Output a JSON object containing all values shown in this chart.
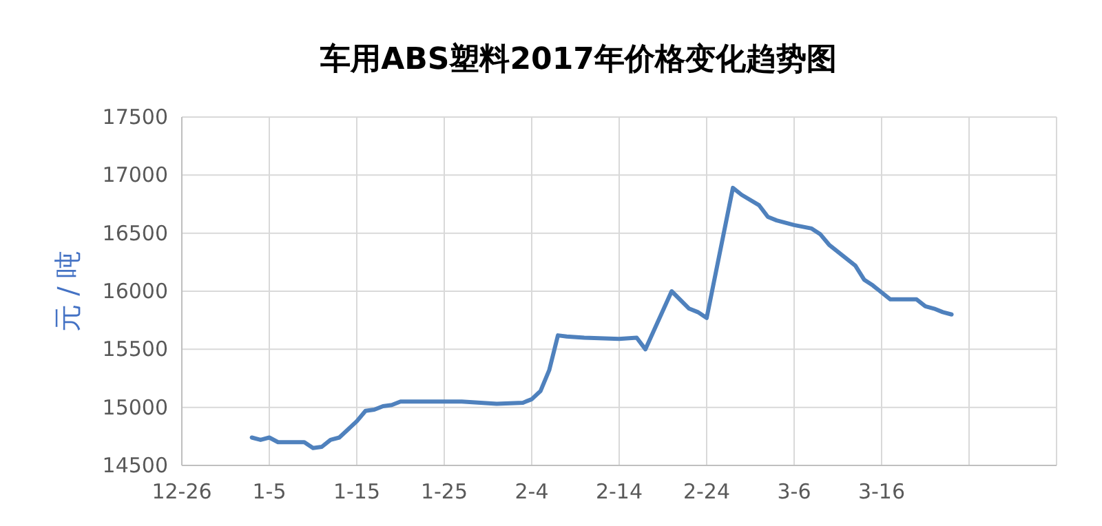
{
  "chart_data": {
    "type": "line",
    "title": "车用ABS塑料2017年价格变化趋势图",
    "ylabel": "元 / 吨",
    "x": [
      "2017-01-03",
      "2017-01-04",
      "2017-01-05",
      "2017-01-06",
      "2017-01-09",
      "2017-01-10",
      "2017-01-11",
      "2017-01-12",
      "2017-01-13",
      "2017-01-15",
      "2017-01-16",
      "2017-01-17",
      "2017-01-18",
      "2017-01-19",
      "2017-01-20",
      "2017-01-22",
      "2017-01-27",
      "2017-01-31",
      "2017-02-03",
      "2017-02-04",
      "2017-02-05",
      "2017-02-06",
      "2017-02-07",
      "2017-02-08",
      "2017-02-10",
      "2017-02-14",
      "2017-02-16",
      "2017-02-17",
      "2017-02-20",
      "2017-02-22",
      "2017-02-23",
      "2017-02-24",
      "2017-02-27",
      "2017-02-28",
      "2017-03-02",
      "2017-03-03",
      "2017-03-04",
      "2017-03-06",
      "2017-03-08",
      "2017-03-09",
      "2017-03-10",
      "2017-03-13",
      "2017-03-14",
      "2017-03-15",
      "2017-03-17",
      "2017-03-20",
      "2017-03-21",
      "2017-03-22",
      "2017-03-23",
      "2017-03-24"
    ],
    "series": [
      {
        "color": "#4f81bd",
        "values": [
          14740,
          14720,
          14740,
          14700,
          14700,
          14650,
          14660,
          14720,
          14740,
          14880,
          14970,
          14980,
          15010,
          15020,
          15050,
          15050,
          15050,
          15030,
          15040,
          15070,
          15140,
          15320,
          15620,
          15610,
          15600,
          15590,
          15600,
          15500,
          16000,
          15850,
          15820,
          15770,
          16890,
          16830,
          16740,
          16640,
          16610,
          16570,
          16540,
          16490,
          16400,
          16220,
          16100,
          16050,
          15930,
          15930,
          15870,
          15850,
          15820,
          15800
        ]
      }
    ],
    "xlim": [
      "2016-12-26",
      "2017-04-05"
    ],
    "xticks": [
      {
        "value": "2016-12-26",
        "label": "12-26"
      },
      {
        "value": "2017-01-05",
        "label": "1-5"
      },
      {
        "value": "2017-01-15",
        "label": "1-15"
      },
      {
        "value": "2017-01-25",
        "label": "1-25"
      },
      {
        "value": "2017-02-04",
        "label": "2-4"
      },
      {
        "value": "2017-02-14",
        "label": "2-14"
      },
      {
        "value": "2017-02-24",
        "label": "2-24"
      },
      {
        "value": "2017-03-06",
        "label": "3-6"
      },
      {
        "value": "2017-03-16",
        "label": "3-16"
      },
      {
        "value": "2017-03-26",
        "label": null
      },
      {
        "value": "2017-04-05",
        "label": null
      }
    ],
    "ylim": [
      14500,
      17500
    ],
    "yticks": [
      14500,
      15000,
      15500,
      16000,
      16500,
      17000,
      17500
    ],
    "grid": true,
    "marker": "none",
    "line_style": "solid"
  }
}
